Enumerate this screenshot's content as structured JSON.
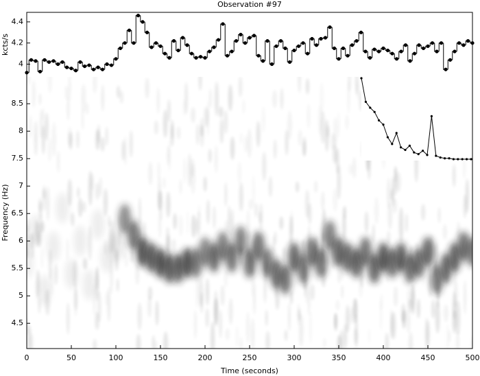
{
  "chart_data": [
    {
      "type": "step",
      "title": "Observation #97",
      "ylabel": "kcts/s",
      "x": [
        0,
        5,
        10,
        15,
        20,
        25,
        30,
        35,
        40,
        45,
        50,
        55,
        60,
        65,
        70,
        75,
        80,
        85,
        90,
        95,
        100,
        105,
        110,
        115,
        120,
        125,
        130,
        135,
        140,
        145,
        150,
        155,
        160,
        165,
        170,
        175,
        180,
        185,
        190,
        195,
        200,
        205,
        210,
        215,
        220,
        225,
        230,
        235,
        240,
        245,
        250,
        255,
        260,
        265,
        270,
        275,
        280,
        285,
        290,
        295,
        300,
        305,
        310,
        315,
        320,
        325,
        330,
        335,
        340,
        345,
        350,
        355,
        360,
        365,
        370,
        375,
        380,
        385,
        390,
        395,
        400,
        405,
        410,
        415,
        420,
        425,
        430,
        435,
        440,
        445,
        450,
        455,
        460,
        465,
        470,
        475,
        480,
        485,
        490,
        495,
        500
      ],
      "values": [
        3.92,
        4.04,
        4.03,
        3.93,
        4.04,
        4.02,
        4.03,
        4.0,
        4.02,
        3.97,
        3.96,
        3.94,
        4.02,
        3.98,
        3.99,
        3.95,
        3.97,
        3.95,
        4.0,
        3.99,
        4.05,
        4.15,
        4.2,
        4.32,
        4.2,
        4.46,
        4.4,
        4.3,
        4.16,
        4.2,
        4.17,
        4.1,
        4.06,
        4.22,
        4.13,
        4.25,
        4.18,
        4.1,
        4.06,
        4.07,
        4.06,
        4.12,
        4.16,
        4.23,
        4.38,
        4.08,
        4.12,
        4.22,
        4.28,
        4.2,
        4.25,
        4.27,
        4.08,
        4.03,
        4.22,
        4.0,
        4.17,
        4.22,
        4.15,
        4.02,
        4.13,
        4.17,
        4.2,
        4.1,
        4.24,
        4.18,
        4.24,
        4.25,
        4.35,
        4.15,
        4.05,
        4.15,
        4.08,
        4.18,
        4.22,
        4.3,
        4.12,
        4.06,
        4.14,
        4.12,
        4.15,
        4.13,
        4.1,
        4.05,
        4.12,
        4.18,
        4.03,
        4.1,
        4.18,
        4.15,
        4.17,
        4.2,
        4.12,
        4.2,
        3.95,
        4.04,
        4.12,
        4.2,
        4.18,
        4.22,
        4.2
      ],
      "color": "#000000",
      "xlim": [
        0,
        500
      ],
      "ylim": [
        3.88,
        4.49
      ],
      "yticks": [
        4,
        4.2,
        4.4
      ]
    },
    {
      "type": "spectrogram",
      "xlabel": "Time (seconds)",
      "ylabel": "Frequency (Hz)",
      "x": [
        0,
        10,
        20,
        30,
        40,
        50,
        60,
        70,
        80,
        90,
        100,
        110,
        120,
        130,
        140,
        150,
        160,
        170,
        180,
        190,
        200,
        210,
        220,
        230,
        240,
        250,
        260,
        270,
        280,
        290,
        300,
        310,
        320,
        330,
        340,
        350,
        360,
        370,
        380,
        390,
        400,
        410,
        420,
        430,
        440,
        450,
        460,
        470,
        480,
        490,
        500
      ],
      "values": [
        5.6,
        6.2,
        5.1,
        5.9,
        6.6,
        5.4,
        6.0,
        5.2,
        6.3,
        5.7,
        5.9,
        6.4,
        6.1,
        5.8,
        5.7,
        5.6,
        5.5,
        5.5,
        5.6,
        5.6,
        5.8,
        5.7,
        5.9,
        5.7,
        6.0,
        5.6,
        5.9,
        5.6,
        5.4,
        5.3,
        5.7,
        5.5,
        5.8,
        5.6,
        6.1,
        5.8,
        5.7,
        5.6,
        5.8,
        5.5,
        5.7,
        5.6,
        5.7,
        5.5,
        5.6,
        5.8,
        5.3,
        5.5,
        5.7,
        5.9,
        5.8
      ],
      "intensity": [
        0.08,
        0.08,
        0.08,
        0.08,
        0.08,
        0.08,
        0.08,
        0.08,
        0.08,
        0.08,
        0.12,
        0.5,
        0.6,
        0.7,
        0.65,
        0.7,
        0.65,
        0.6,
        0.7,
        0.55,
        0.5,
        0.6,
        0.55,
        0.6,
        0.55,
        0.6,
        0.6,
        0.55,
        0.6,
        0.6,
        0.65,
        0.55,
        0.6,
        0.6,
        0.55,
        0.65,
        0.6,
        0.65,
        0.6,
        0.65,
        0.7,
        0.6,
        0.65,
        0.6,
        0.6,
        0.65,
        0.55,
        0.6,
        0.65,
        0.6,
        0.55
      ],
      "color": "#1a1a1a",
      "xlim": [
        0,
        500
      ],
      "ylim": [
        4.04,
        8.99
      ],
      "xticks": [
        0,
        50,
        100,
        150,
        200,
        250,
        300,
        350,
        400,
        450,
        500
      ],
      "yticks": [
        4.5,
        5,
        5.5,
        6,
        6.5,
        7,
        7.5,
        8,
        8.5
      ]
    },
    {
      "type": "line",
      "color": "#000000",
      "values": [
        1.0,
        0.72,
        0.65,
        0.6,
        0.5,
        0.45,
        0.3,
        0.22,
        0.35,
        0.18,
        0.15,
        0.2,
        0.12,
        0.1,
        0.14,
        0.09,
        0.55,
        0.08,
        0.06,
        0.05,
        0.05,
        0.04,
        0.04,
        0.04,
        0.04,
        0.04
      ]
    }
  ]
}
